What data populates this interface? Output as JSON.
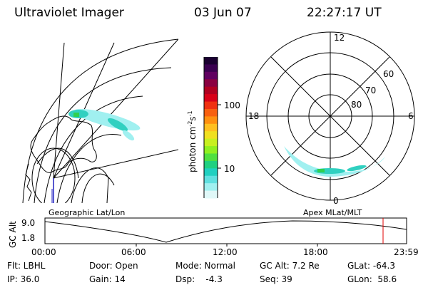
{
  "header": {
    "title": "Ultraviolet Imager",
    "date": "03 Jun 07",
    "time": "22:27:17 UT"
  },
  "colorbar": {
    "label_base": "photon cm",
    "label_exp1": "-2",
    "label_mid": "s",
    "label_exp2": "-1",
    "ticks": [
      "100",
      "10"
    ],
    "colors": [
      "#1a0030",
      "#3a0050",
      "#600060",
      "#8a0040",
      "#b00020",
      "#d80018",
      "#f03010",
      "#f86010",
      "#ff9010",
      "#ffc020",
      "#f0e020",
      "#c8f020",
      "#90f020",
      "#50e040",
      "#20d080",
      "#20d0c0",
      "#60e0e0",
      "#a0f0f0",
      "#e0f8f8"
    ]
  },
  "left_map": {
    "label": "Geographic Lat/Lon"
  },
  "right_map": {
    "label": "Apex MLat/MLT",
    "mlt_labels": [
      "12",
      "18",
      "6",
      "0"
    ],
    "lat_labels": [
      "60",
      "70",
      "80"
    ]
  },
  "altitude_plot": {
    "ylabel": "GC Alt",
    "yticks": [
      "9.0",
      "1.8"
    ],
    "xticks": [
      "00:00",
      "06:00",
      "12:00",
      "18:00",
      "23:59"
    ],
    "marker_color": "#e00000"
  },
  "info": {
    "flt": "Flt: LBHL",
    "door": "Door: Open",
    "mode": "Mode: Normal",
    "gc_alt": "GC Alt: 7.2 Re",
    "glat": "GLat: -64.3",
    "ip": "IP: 36.0",
    "gain": "Gain: 14",
    "dsp": "Dsp:    -4.3",
    "seq": "Seq: 39",
    "glon": "GLon:  58.6"
  },
  "colors": {
    "aurora_light": "#a0f0f0",
    "aurora_mid": "#30d0c0",
    "aurora_green": "#30d050",
    "line": "#000000",
    "spin_axis": "#2020c0"
  }
}
